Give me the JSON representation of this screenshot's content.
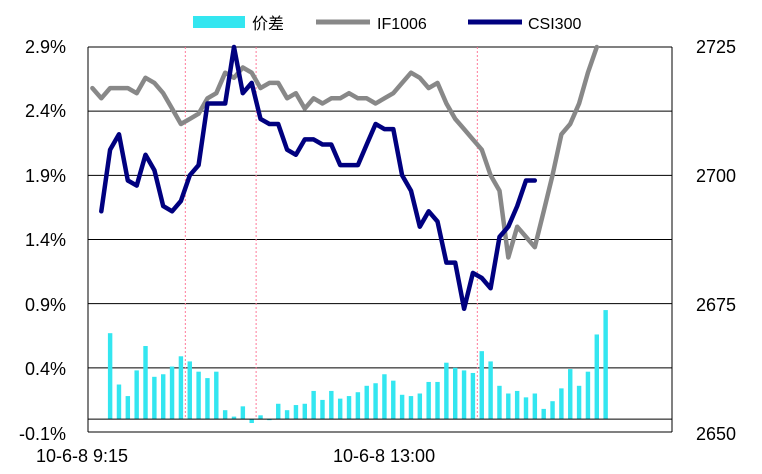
{
  "chart_data": {
    "type": "bar+line",
    "legend": {
      "position": "top",
      "entries": [
        {
          "label": "价差",
          "color": "#33e6f0",
          "kind": "bar"
        },
        {
          "label": "IF1006",
          "color": "#888888",
          "kind": "line"
        },
        {
          "label": "CSI300",
          "color": "#00007f",
          "kind": "line"
        }
      ]
    },
    "x_tick_labels": [
      "10-6-8 9:15",
      "10-6-8 13:00"
    ],
    "y_left": {
      "range": [
        -0.1,
        2.9
      ],
      "ticks": [
        2.9,
        2.4,
        1.9,
        1.4,
        0.9,
        0.4,
        -0.1
      ],
      "tick_labels": [
        "2.9%",
        "2.4%",
        "1.9%",
        "1.4%",
        "0.9%",
        "0.4%",
        "-0.1%"
      ]
    },
    "y_right": {
      "range": [
        2650,
        2725
      ],
      "ticks": [
        2725,
        2700,
        2675,
        2650
      ],
      "tick_labels": [
        "2725",
        "2700",
        "2675",
        "2650"
      ]
    },
    "grid": {
      "horizontal": true,
      "vertical_dashed": true
    },
    "n_points": 66,
    "series": [
      {
        "name": "价差",
        "axis": "left",
        "type": "bar",
        "color": "#33e6f0",
        "values": [
          null,
          0.67,
          0.27,
          0.18,
          0.38,
          0.57,
          0.33,
          0.35,
          0.41,
          0.49,
          0.45,
          0.37,
          0.32,
          0.37,
          0.07,
          0.02,
          0.1,
          -0.03,
          0.03,
          0.0,
          0.12,
          0.07,
          0.11,
          0.12,
          0.22,
          0.15,
          0.22,
          0.16,
          0.18,
          0.21,
          0.26,
          0.28,
          0.35,
          0.3,
          0.19,
          0.18,
          0.2,
          0.29,
          0.29,
          0.44,
          0.4,
          0.38,
          0.36,
          0.53,
          0.45,
          0.26,
          0.2,
          0.22,
          0.17,
          0.2,
          0.08,
          0.14,
          0.24,
          0.39,
          0.26,
          0.37,
          0.66,
          0.85
        ]
      },
      {
        "name": "IF1006",
        "axis": "right",
        "type": "line",
        "color": "#888888",
        "values": [
          2717,
          2715,
          2717,
          2717,
          2717,
          2716,
          2719,
          2718,
          2716,
          2713,
          2710,
          2711,
          2712,
          2715,
          2716,
          2720,
          2719,
          2721,
          2720,
          2717,
          2718,
          2718,
          2715,
          2716,
          2713,
          2715,
          2714,
          2715,
          2715,
          2716,
          2715,
          2715,
          2714,
          2715,
          2716,
          2718,
          2720,
          2719,
          2717,
          2718,
          2714,
          2711,
          2709,
          2707,
          2705,
          2700,
          2697,
          2684,
          2690,
          2688,
          2686,
          2693,
          2700,
          2708,
          2710,
          2714,
          2720,
          2725
        ]
      },
      {
        "name": "CSI300",
        "axis": "right",
        "type": "line",
        "color": "#00007f",
        "values": [
          2693,
          2705,
          2708,
          2699,
          2698,
          2704,
          2701,
          2694,
          2693,
          2695,
          2700,
          2702,
          2714,
          2714,
          2714,
          2725,
          2716,
          2718,
          2711,
          2710,
          2710,
          2705,
          2704,
          2707,
          2707,
          2706,
          2706,
          2702,
          2702,
          2702,
          2706,
          2710,
          2709,
          2709,
          2700,
          2697,
          2690,
          2693,
          2691,
          2683,
          2683,
          2674,
          2681,
          2680,
          2678,
          2688,
          2690,
          2694,
          2699,
          2699
        ]
      }
    ],
    "bar_indices": [
      1,
      2,
      3,
      4,
      5,
      6,
      7,
      8,
      9,
      10,
      11,
      12,
      13,
      14,
      15,
      16,
      17,
      18,
      19,
      20,
      21,
      22,
      23,
      24,
      25,
      26,
      27,
      28,
      29,
      30,
      31,
      32,
      33,
      34,
      35,
      36,
      37,
      38,
      39,
      40,
      41,
      42,
      43,
      44,
      45,
      46,
      47,
      48,
      49,
      50,
      51,
      52,
      53,
      54,
      55,
      56,
      57,
      58
    ],
    "if_indices": [
      0,
      1,
      2,
      3,
      4,
      5,
      6,
      7,
      8,
      9,
      10,
      11,
      12,
      13,
      14,
      15,
      16,
      17,
      18,
      19,
      20,
      21,
      22,
      23,
      24,
      25,
      26,
      27,
      28,
      29,
      30,
      31,
      32,
      33,
      34,
      35,
      36,
      37,
      38,
      39,
      40,
      41,
      42,
      43,
      44,
      45,
      46,
      47,
      48,
      49,
      50,
      51,
      52,
      53,
      54,
      55,
      56,
      57
    ],
    "csi_indices": [
      1,
      2,
      3,
      4,
      5,
      6,
      7,
      8,
      9,
      10,
      11,
      12,
      13,
      14,
      15,
      16,
      17,
      18,
      19,
      20,
      21,
      22,
      23,
      24,
      25,
      26,
      27,
      28,
      29,
      30,
      31,
      32,
      33,
      34,
      35,
      36,
      37,
      38,
      39,
      40,
      41,
      42,
      43,
      44,
      45,
      46,
      47,
      48,
      49,
      50
    ]
  }
}
